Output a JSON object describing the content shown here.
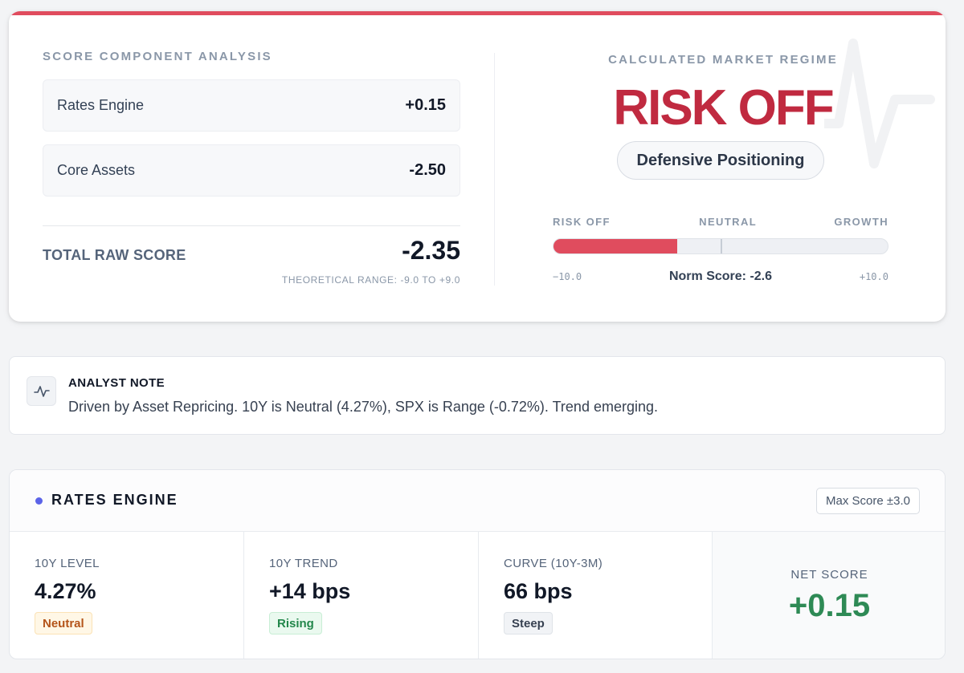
{
  "colors": {
    "risk_red": "#c02a40",
    "accent_red": "#e04c5e",
    "positive_green": "#2e8a55",
    "rates_dot": "#5b63e8"
  },
  "score_components": {
    "title": "SCORE COMPONENT ANALYSIS",
    "items": [
      {
        "name": "Rates Engine",
        "value": "+0.15"
      },
      {
        "name": "Core Assets",
        "value": "-2.50"
      }
    ],
    "total_label": "TOTAL RAW SCORE",
    "total_value": "-2.35",
    "range_note": "THEORETICAL RANGE: -9.0 TO +9.0"
  },
  "regime": {
    "label": "CALCULATED MARKET REGIME",
    "title": "RISK OFF",
    "pill": "Defensive Positioning",
    "background_icon": "pulse-icon",
    "gauge": {
      "labels": [
        "RISK OFF",
        "NEUTRAL",
        "GROWTH"
      ],
      "min_label": "−10.0",
      "max_label": "+10.0",
      "norm_text": "Norm Score: -2.6",
      "norm_score": -2.6,
      "fill_fraction": 0.37
    }
  },
  "analyst_note": {
    "icon": "activity-icon",
    "title": "ANALYST NOTE",
    "body": "Driven by Asset Repricing. 10Y is Neutral (4.27%), SPX is Range (-0.72%). Trend emerging."
  },
  "rates_engine": {
    "title": "RATES ENGINE",
    "max_score": "Max Score ±3.0",
    "metrics": [
      {
        "label": "10Y LEVEL",
        "value": "4.27%",
        "badge": "Neutral"
      },
      {
        "label": "10Y TREND",
        "value": "+14 bps",
        "badge": "Rising"
      },
      {
        "label": "CURVE (10Y-3M)",
        "value": "66 bps",
        "badge": "Steep"
      }
    ],
    "net_label": "NET SCORE",
    "net_value": "+0.15"
  }
}
